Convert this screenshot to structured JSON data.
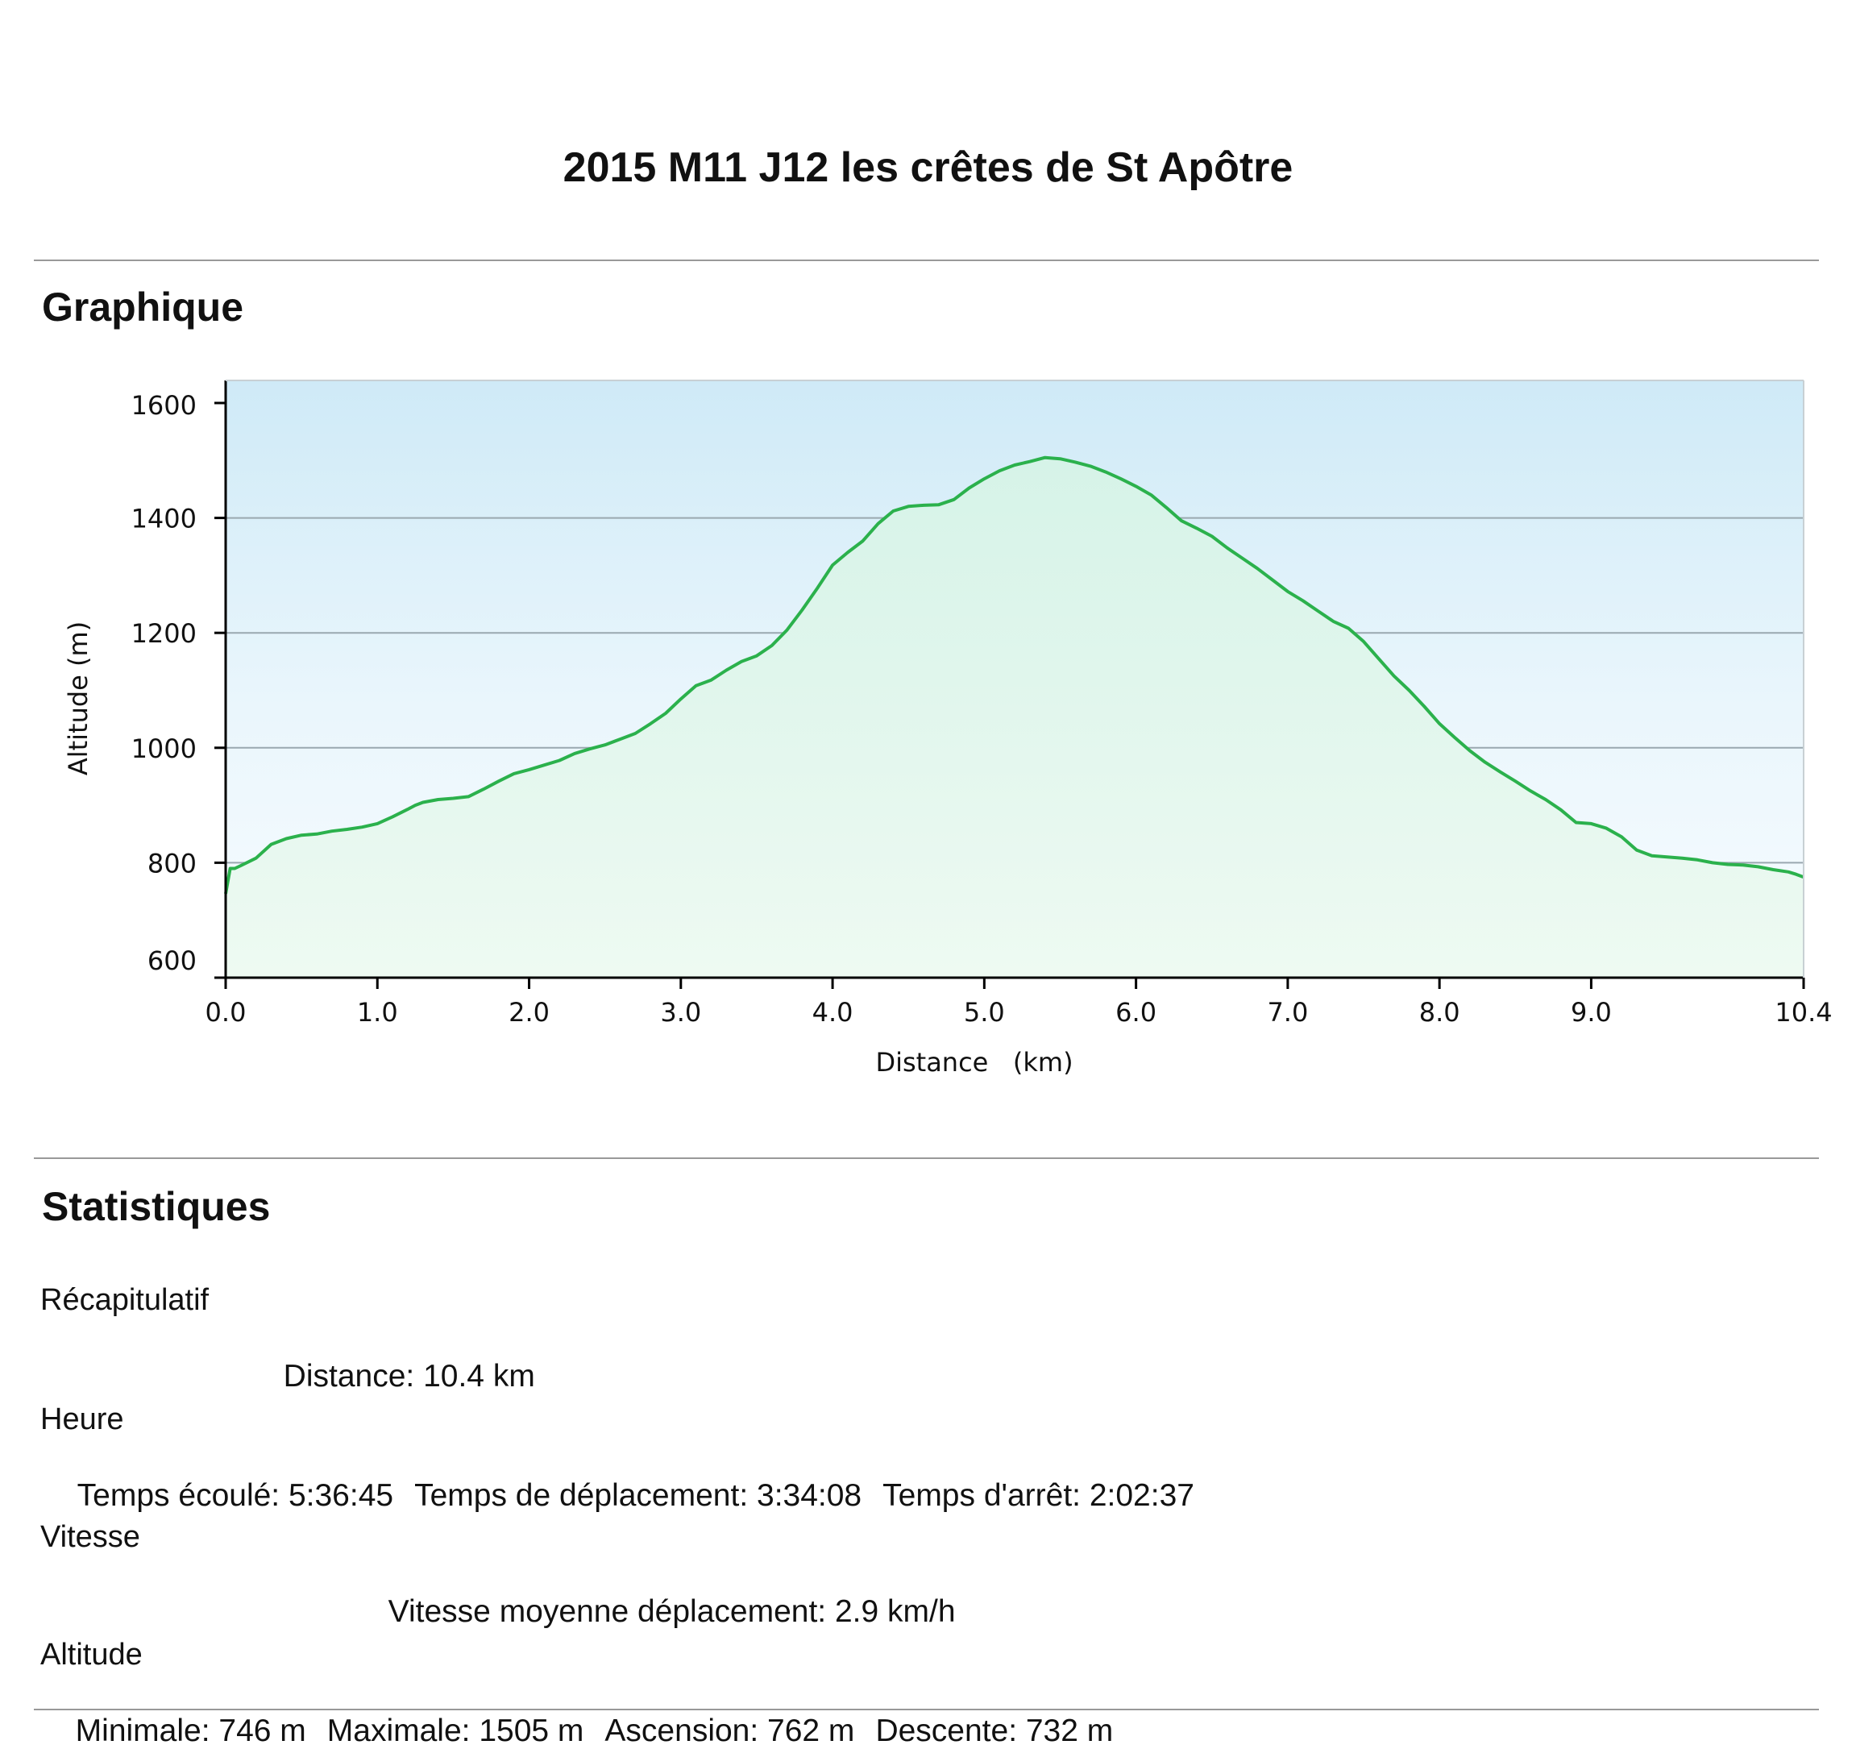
{
  "page": {
    "title": "2015 M11 J12 les crêtes de St Apôtre"
  },
  "sections": {
    "graph_heading": "Graphique",
    "stats_heading": "Statistiques"
  },
  "chart_data": {
    "type": "area",
    "title": "",
    "xlabel": "Distance   (km)",
    "ylabel": "Altitude (m)",
    "xlim": [
      0,
      10.4
    ],
    "ylim": [
      600,
      1600
    ],
    "x_ticks": [
      "0.0",
      "1.0",
      "2.0",
      "3.0",
      "4.0",
      "5.0",
      "6.0",
      "7.0",
      "8.0",
      "9.0",
      "10.4"
    ],
    "y_ticks": [
      "600",
      "800",
      "1000",
      "1200",
      "1400",
      "1600"
    ],
    "grid": "horizontal",
    "colors": {
      "line": "#2bb14c",
      "fill_top": "#d2edf8",
      "fill_bottom": "#eafaf0",
      "grid": "#9aa8b0"
    },
    "series": [
      {
        "x": [
          0.0,
          0.03,
          0.06,
          0.1,
          0.2,
          0.3,
          0.4,
          0.5,
          0.6,
          0.7,
          0.8,
          0.9,
          1.0,
          1.1,
          1.2,
          1.25,
          1.3,
          1.4,
          1.5,
          1.6,
          1.7,
          1.8,
          1.9,
          2.0,
          2.1,
          2.2,
          2.3,
          2.4,
          2.5,
          2.6,
          2.7,
          2.8,
          2.9,
          3.0,
          3.1,
          3.2,
          3.3,
          3.4,
          3.5,
          3.6,
          3.7,
          3.8,
          3.9,
          4.0,
          4.1,
          4.2,
          4.3,
          4.4,
          4.5,
          4.6,
          4.7,
          4.8,
          4.9,
          5.0,
          5.1,
          5.2,
          5.3,
          5.4,
          5.5,
          5.6,
          5.7,
          5.8,
          5.9,
          6.0,
          6.1,
          6.2,
          6.3,
          6.4,
          6.5,
          6.6,
          6.7,
          6.8,
          6.9,
          7.0,
          7.1,
          7.2,
          7.3,
          7.4,
          7.5,
          7.6,
          7.7,
          7.8,
          7.9,
          8.0,
          8.1,
          8.2,
          8.3,
          8.4,
          8.5,
          8.6,
          8.7,
          8.8,
          8.9,
          9.0,
          9.1,
          9.2,
          9.3,
          9.4,
          9.5,
          9.6,
          9.7,
          9.8,
          9.9,
          10.0,
          10.1,
          10.2,
          10.3,
          10.35,
          10.4
        ],
        "y": [
          746,
          790,
          790,
          795,
          808,
          832,
          842,
          848,
          850,
          855,
          858,
          862,
          868,
          880,
          893,
          900,
          905,
          910,
          912,
          915,
          928,
          942,
          955,
          962,
          970,
          978,
          990,
          998,
          1005,
          1015,
          1025,
          1042,
          1060,
          1085,
          1108,
          1118,
          1135,
          1150,
          1160,
          1178,
          1205,
          1240,
          1278,
          1318,
          1340,
          1360,
          1390,
          1412,
          1420,
          1422,
          1423,
          1432,
          1452,
          1468,
          1482,
          1492,
          1498,
          1505,
          1503,
          1497,
          1490,
          1480,
          1468,
          1455,
          1440,
          1418,
          1395,
          1382,
          1368,
          1348,
          1330,
          1312,
          1292,
          1272,
          1256,
          1238,
          1220,
          1208,
          1185,
          1155,
          1125,
          1100,
          1072,
          1042,
          1018,
          995,
          975,
          958,
          942,
          925,
          910,
          892,
          870,
          868,
          860,
          845,
          822,
          812,
          810,
          808,
          805,
          800,
          797,
          796,
          793,
          788,
          784,
          780,
          775
        ]
      }
    ]
  },
  "stats": {
    "recap": {
      "label": "Récapitulatif",
      "distance": "Distance: 10.4 km"
    },
    "time": {
      "label": "Heure",
      "elapsed": "Temps écoulé: 5:36:45",
      "moving": "Temps de déplacement: 3:34:08",
      "stopped": "Temps d'arrêt: 2:02:37"
    },
    "speed": {
      "label": "Vitesse",
      "moving_avg": "Vitesse moyenne déplacement: 2.9 km/h"
    },
    "altitude": {
      "label": "Altitude",
      "min": "Minimale: 746 m",
      "max": "Maximale: 1505 m",
      "ascent": "Ascension: 762 m",
      "descent": "Descente: 732 m"
    }
  }
}
